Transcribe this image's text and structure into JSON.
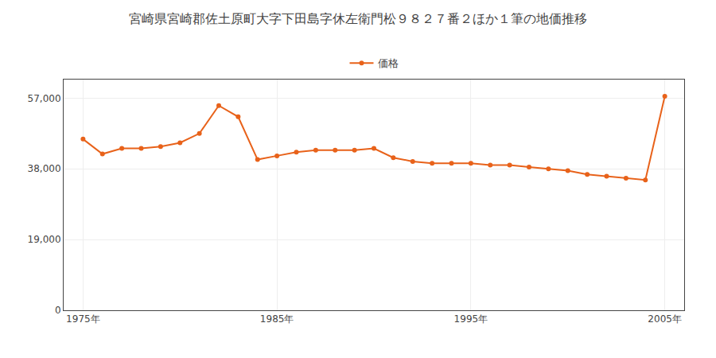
{
  "chart_data": {
    "type": "line",
    "title": "宮崎県宮崎郡佐土原町大字下田島字休左衛門松９８２７番２ほか１筆の地価推移",
    "x": [
      1975,
      1976,
      1977,
      1978,
      1979,
      1980,
      1981,
      1982,
      1983,
      1984,
      1985,
      1986,
      1987,
      1988,
      1989,
      1990,
      1991,
      1992,
      1993,
      1994,
      1995,
      1996,
      1997,
      1998,
      1999,
      2000,
      2001,
      2002,
      2003,
      2004,
      2005
    ],
    "series": [
      {
        "name": "価格",
        "color": "#E8621A",
        "marker": "circle",
        "values": [
          46000,
          42000,
          43500,
          43500,
          44000,
          45000,
          47500,
          55000,
          52000,
          40500,
          41500,
          42500,
          43000,
          43000,
          43000,
          43500,
          41000,
          40000,
          39500,
          39500,
          39500,
          39000,
          39000,
          38500,
          38000,
          37500,
          36500,
          36000,
          35500,
          35000,
          57500
        ]
      }
    ],
    "xlim": [
      1974,
      2006
    ],
    "xticks": [
      {
        "value": 1975,
        "label": "1975年"
      },
      {
        "value": 1985,
        "label": "1985年"
      },
      {
        "value": 1995,
        "label": "1995年"
      },
      {
        "value": 2005,
        "label": "2005年"
      }
    ],
    "ylim": [
      0,
      62000
    ],
    "yticks": [
      0,
      {
        "value": 19000,
        "label": "19,000"
      },
      {
        "value": 38000,
        "label": "38,000"
      },
      {
        "value": 57000,
        "label": "57,000"
      }
    ],
    "grid": true,
    "legend": "top"
  }
}
